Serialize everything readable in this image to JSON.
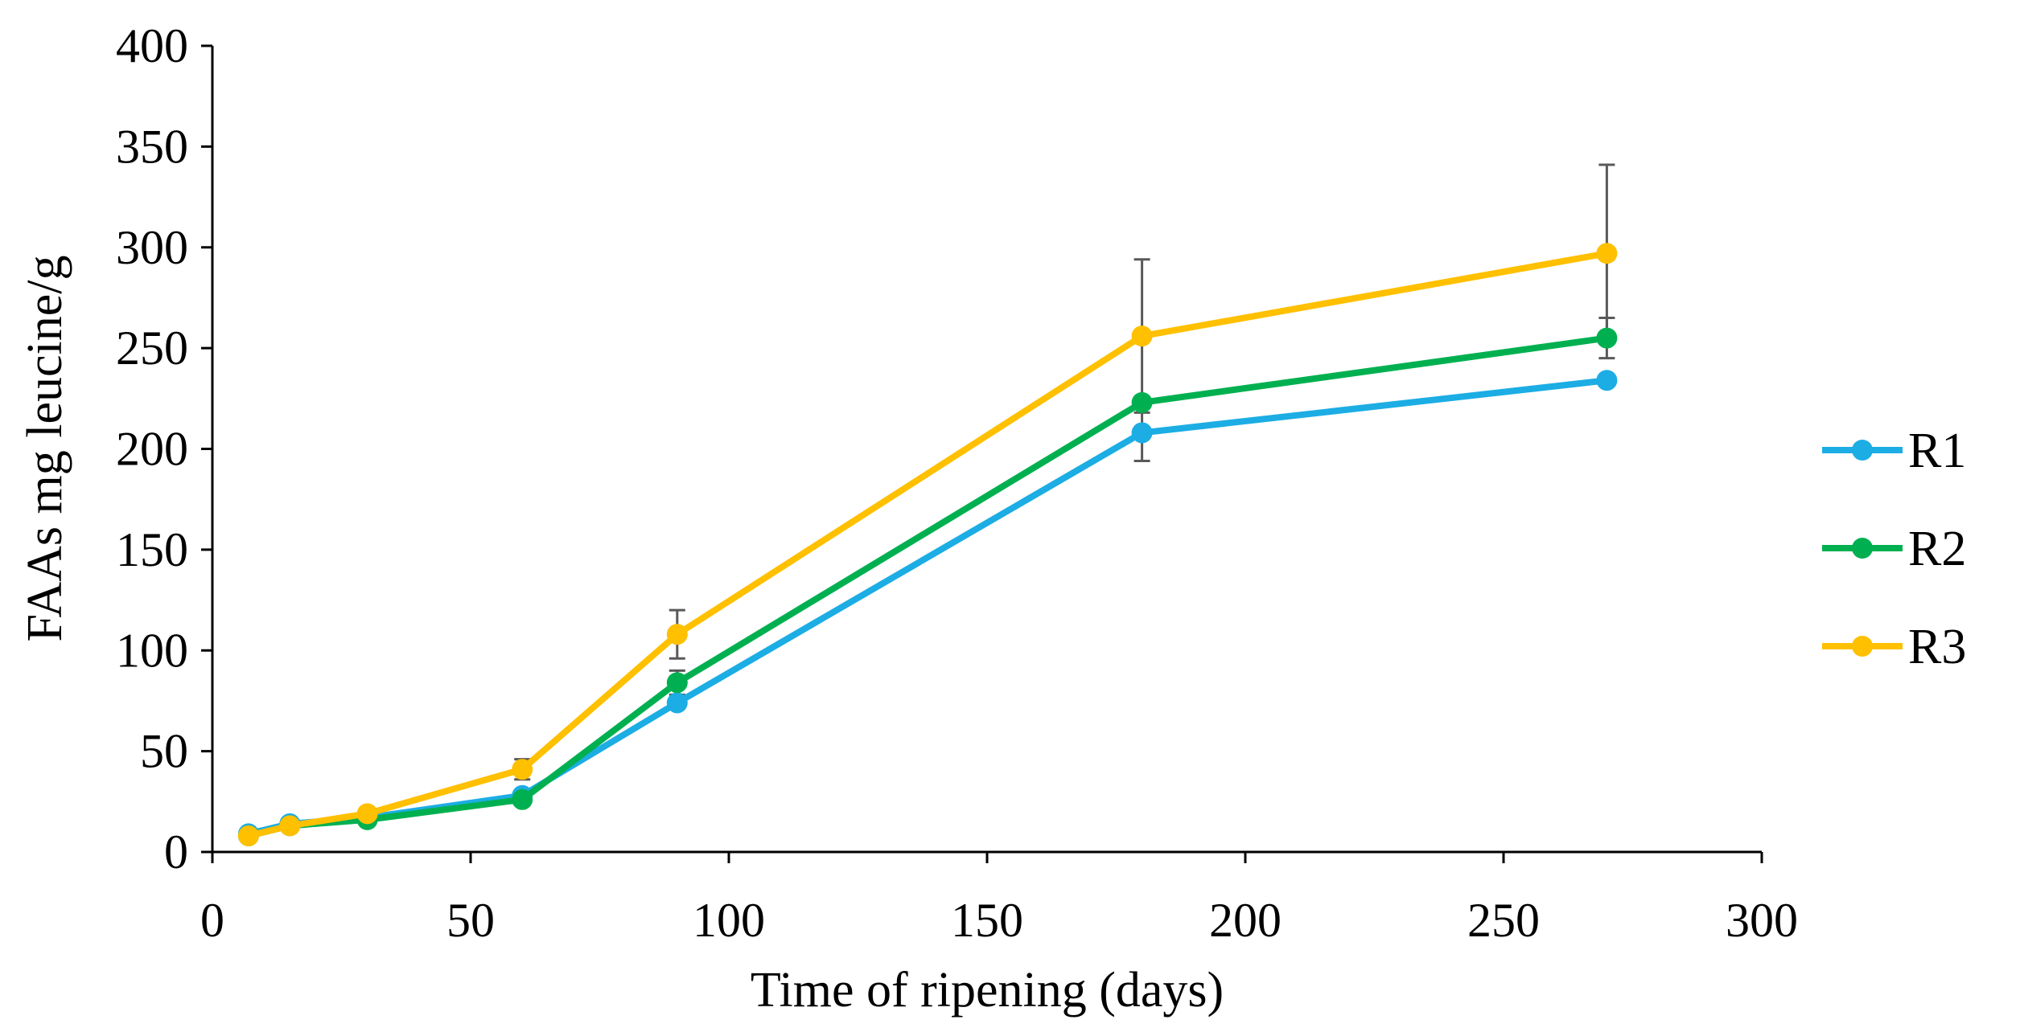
{
  "chart_data": {
    "type": "line",
    "title": "",
    "xlabel": "Time of ripening  (days)",
    "ylabel": "FAAs mg leucine/g",
    "xlim": [
      0,
      300
    ],
    "ylim": [
      0,
      400
    ],
    "x_ticks": [
      "0",
      "50",
      "100",
      "150",
      "200",
      "250",
      "300"
    ],
    "y_ticks": [
      "0",
      "50",
      "100",
      "150",
      "200",
      "250",
      "300",
      "350",
      "400"
    ],
    "grid": false,
    "legend_position": "right",
    "x": [
      7,
      15,
      30,
      60,
      90,
      180,
      270
    ],
    "series": [
      {
        "name": "R1",
        "color": "#1CADE4",
        "values": [
          9,
          14,
          17,
          28,
          74,
          208,
          234
        ],
        "error": [
          0,
          0,
          0,
          0,
          0,
          14,
          0
        ]
      },
      {
        "name": "R2",
        "color": "#00B050",
        "values": [
          8,
          13,
          16,
          26,
          84,
          223,
          255
        ],
        "error": [
          0,
          0,
          0,
          0,
          6,
          0,
          10
        ]
      },
      {
        "name": "R3",
        "color": "#FFC000",
        "values": [
          8,
          13,
          19,
          41,
          108,
          256,
          297
        ],
        "error": [
          0,
          0,
          0,
          5,
          12,
          38,
          44
        ]
      }
    ]
  }
}
